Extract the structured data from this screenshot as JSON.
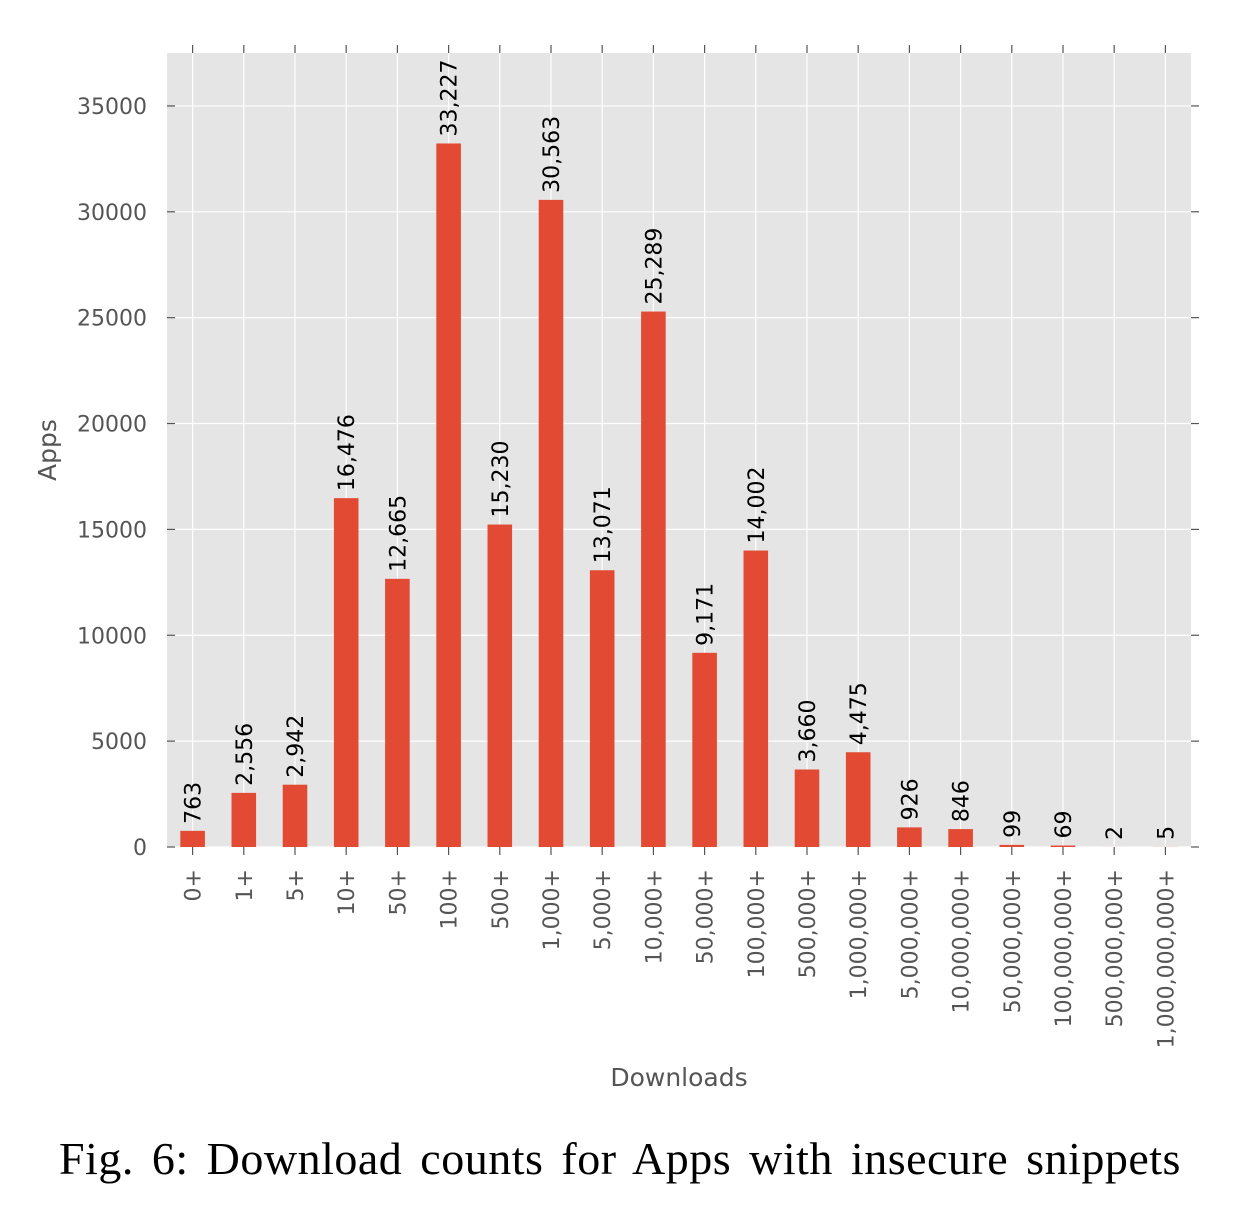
{
  "caption": "Fig. 6: Download counts for Apps with insecure snippets",
  "chart_data": {
    "type": "bar",
    "xlabel": "Downloads",
    "ylabel": "Apps",
    "categories": [
      "0+",
      "1+",
      "5+",
      "10+",
      "50+",
      "100+",
      "500+",
      "1,000+",
      "5,000+",
      "10,000+",
      "50,000+",
      "100,000+",
      "500,000+",
      "1,000,000+",
      "5,000,000+",
      "10,000,000+",
      "50,000,000+",
      "100,000,000+",
      "500,000,000+",
      "1,000,000,000+"
    ],
    "values": [
      763,
      2556,
      2942,
      16476,
      12665,
      33227,
      15230,
      30563,
      13071,
      25289,
      9171,
      14002,
      3660,
      4475,
      926,
      846,
      99,
      69,
      2,
      5
    ],
    "data_labels": [
      "763",
      "2,556",
      "2,942",
      "16,476",
      "12,665",
      "33,227",
      "15,230",
      "30,563",
      "13,071",
      "25,289",
      "9,171",
      "14,002",
      "3,660",
      "4,475",
      "926",
      "846",
      "99",
      "69",
      "2",
      "5"
    ],
    "yticks": [
      0,
      5000,
      10000,
      15000,
      20000,
      25000,
      30000,
      35000
    ],
    "ylim": [
      0,
      37500
    ],
    "grid": true,
    "colors": {
      "bar": "#e24a33",
      "plot_background": "#e5e5e5",
      "grid": "#ffffff",
      "tick_text": "#555555"
    }
  }
}
